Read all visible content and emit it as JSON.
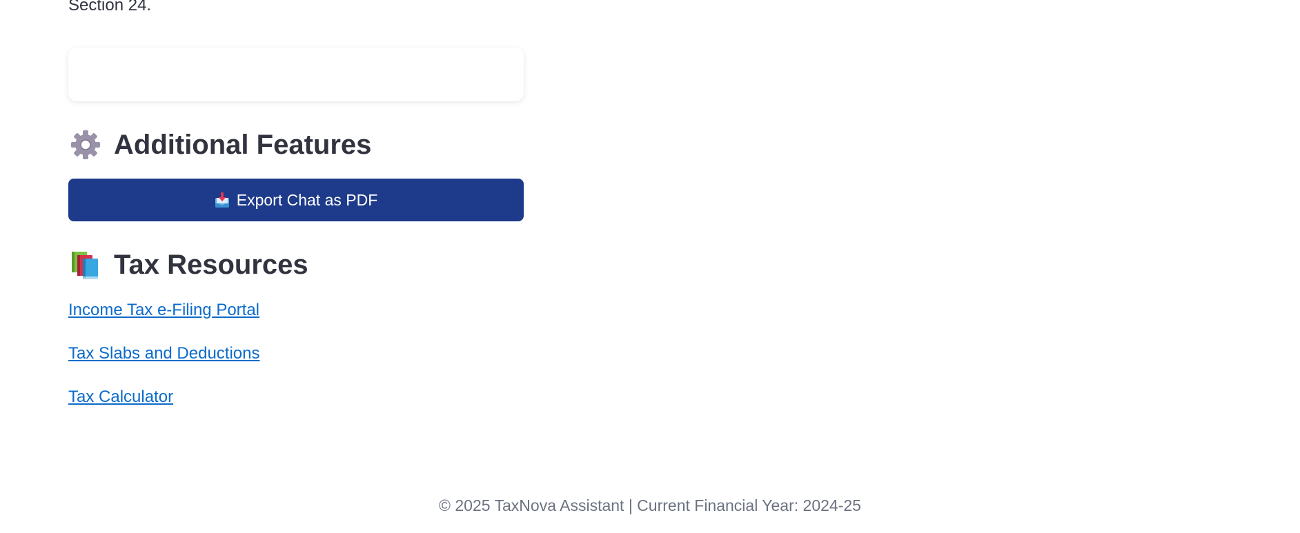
{
  "previous_text": "Section 24.",
  "additional_features": {
    "icon": "gear-icon",
    "title": "Additional Features",
    "export_button": {
      "icon": "inbox-tray-icon",
      "label": "Export Chat as PDF",
      "color": "#1e3a8a"
    }
  },
  "tax_resources": {
    "icon": "books-icon",
    "title": "Tax Resources",
    "links": [
      "Income Tax e-Filing Portal",
      "Tax Slabs and Deductions",
      "Tax Calculator"
    ],
    "link_color": "#0b6bcb"
  },
  "footer": {
    "text": "© 2025 TaxNova Assistant | Current Financial Year: 2024-25"
  }
}
